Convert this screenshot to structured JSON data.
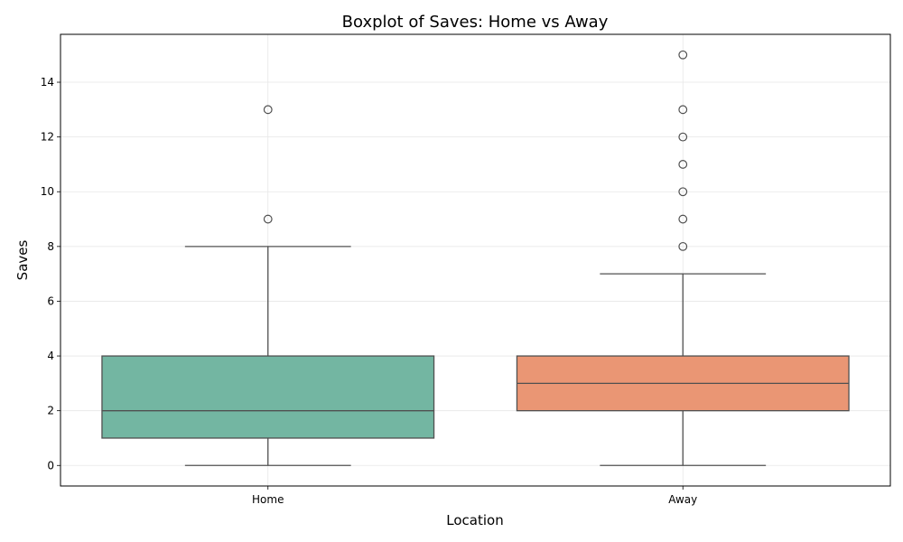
{
  "chart_data": {
    "type": "boxplot",
    "title": "Boxplot of Saves: Home vs Away",
    "xlabel": "Location",
    "ylabel": "Saves",
    "categories": [
      "Home",
      "Away"
    ],
    "ylim": [
      -0.75,
      15.75
    ],
    "yticks": [
      0,
      2,
      4,
      6,
      8,
      10,
      12,
      14
    ],
    "grid": true,
    "series": [
      {
        "category": "Home",
        "color": "#73b6a2",
        "whisker_low": 0,
        "q1": 1,
        "median": 2,
        "q3": 4,
        "whisker_high": 8,
        "outliers": [
          9,
          13
        ]
      },
      {
        "category": "Away",
        "color": "#ea9674",
        "whisker_low": 0,
        "q1": 2,
        "median": 3,
        "q3": 4,
        "whisker_high": 7,
        "outliers": [
          8,
          9,
          10,
          11,
          12,
          13,
          15
        ]
      }
    ],
    "colors": {
      "edge": "#505050",
      "grid": "#e6e6e6",
      "frame": "#000000"
    }
  }
}
